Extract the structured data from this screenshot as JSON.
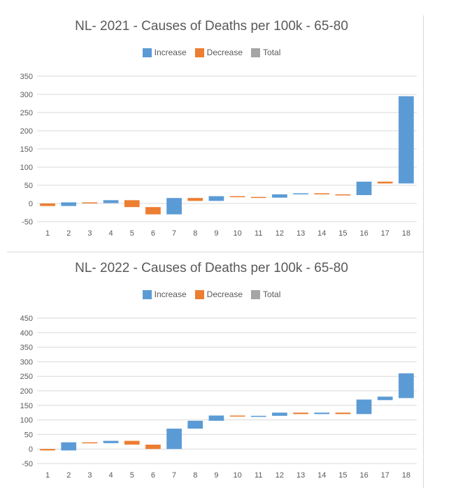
{
  "chart_data": [
    {
      "type": "bar",
      "subtype": "waterfall",
      "title": "NL- 2021 - Causes of Deaths per 100k - 65-80",
      "legend": [
        "Increase",
        "Decrease",
        "Total"
      ],
      "legend_position": "top",
      "colors": {
        "Increase": "#5b9bd5",
        "Decrease": "#ed7d31",
        "Total": "#a5a5a5"
      },
      "categories": [
        "1",
        "2",
        "3",
        "4",
        "5",
        "6",
        "7",
        "8",
        "9",
        "10",
        "11",
        "12",
        "13",
        "14",
        "15",
        "16",
        "17",
        "18"
      ],
      "segments": [
        {
          "start": 0,
          "end": -7
        },
        {
          "start": -7,
          "end": 3
        },
        {
          "start": 3,
          "end": 1
        },
        {
          "start": 1,
          "end": 9
        },
        {
          "start": 9,
          "end": -10
        },
        {
          "start": -10,
          "end": -30
        },
        {
          "start": -30,
          "end": 15
        },
        {
          "start": 15,
          "end": 7
        },
        {
          "start": 7,
          "end": 20
        },
        {
          "start": 20,
          "end": 18
        },
        {
          "start": 18,
          "end": 16
        },
        {
          "start": 16,
          "end": 25
        },
        {
          "start": 25,
          "end": 28
        },
        {
          "start": 28,
          "end": 25
        },
        {
          "start": 25,
          "end": 23
        },
        {
          "start": 23,
          "end": 60
        },
        {
          "start": 60,
          "end": 55
        },
        {
          "start": 55,
          "end": 295
        }
      ],
      "yticks": [
        "-50",
        "0",
        "50",
        "100",
        "150",
        "200",
        "250",
        "300",
        "350"
      ],
      "ylim": [
        -50,
        350
      ],
      "grid": true
    },
    {
      "type": "bar",
      "subtype": "waterfall",
      "title": "NL- 2022 - Causes of Deaths per 100k - 65-80",
      "legend": [
        "Increase",
        "Decrease",
        "Total"
      ],
      "legend_position": "top",
      "colors": {
        "Increase": "#5b9bd5",
        "Decrease": "#ed7d31",
        "Total": "#a5a5a5"
      },
      "categories": [
        "1",
        "2",
        "3",
        "4",
        "5",
        "6",
        "7",
        "8",
        "9",
        "10",
        "11",
        "12",
        "13",
        "14",
        "15",
        "16",
        "17",
        "18"
      ],
      "segments": [
        {
          "start": 0,
          "end": -5
        },
        {
          "start": -5,
          "end": 23
        },
        {
          "start": 23,
          "end": 20
        },
        {
          "start": 20,
          "end": 28
        },
        {
          "start": 28,
          "end": 15
        },
        {
          "start": 15,
          "end": 0
        },
        {
          "start": 0,
          "end": 70
        },
        {
          "start": 70,
          "end": 97
        },
        {
          "start": 97,
          "end": 115
        },
        {
          "start": 115,
          "end": 112
        },
        {
          "start": 112,
          "end": 114
        },
        {
          "start": 114,
          "end": 125
        },
        {
          "start": 125,
          "end": 120
        },
        {
          "start": 120,
          "end": 125
        },
        {
          "start": 125,
          "end": 120
        },
        {
          "start": 120,
          "end": 170
        },
        {
          "start": 168,
          "end": 180
        },
        {
          "start": 175,
          "end": 260
        }
      ],
      "yticks": [
        "-50",
        "0",
        "50",
        "100",
        "150",
        "200",
        "250",
        "300",
        "350",
        "400",
        "450"
      ],
      "ylim": [
        -50,
        450
      ],
      "grid": true
    }
  ]
}
